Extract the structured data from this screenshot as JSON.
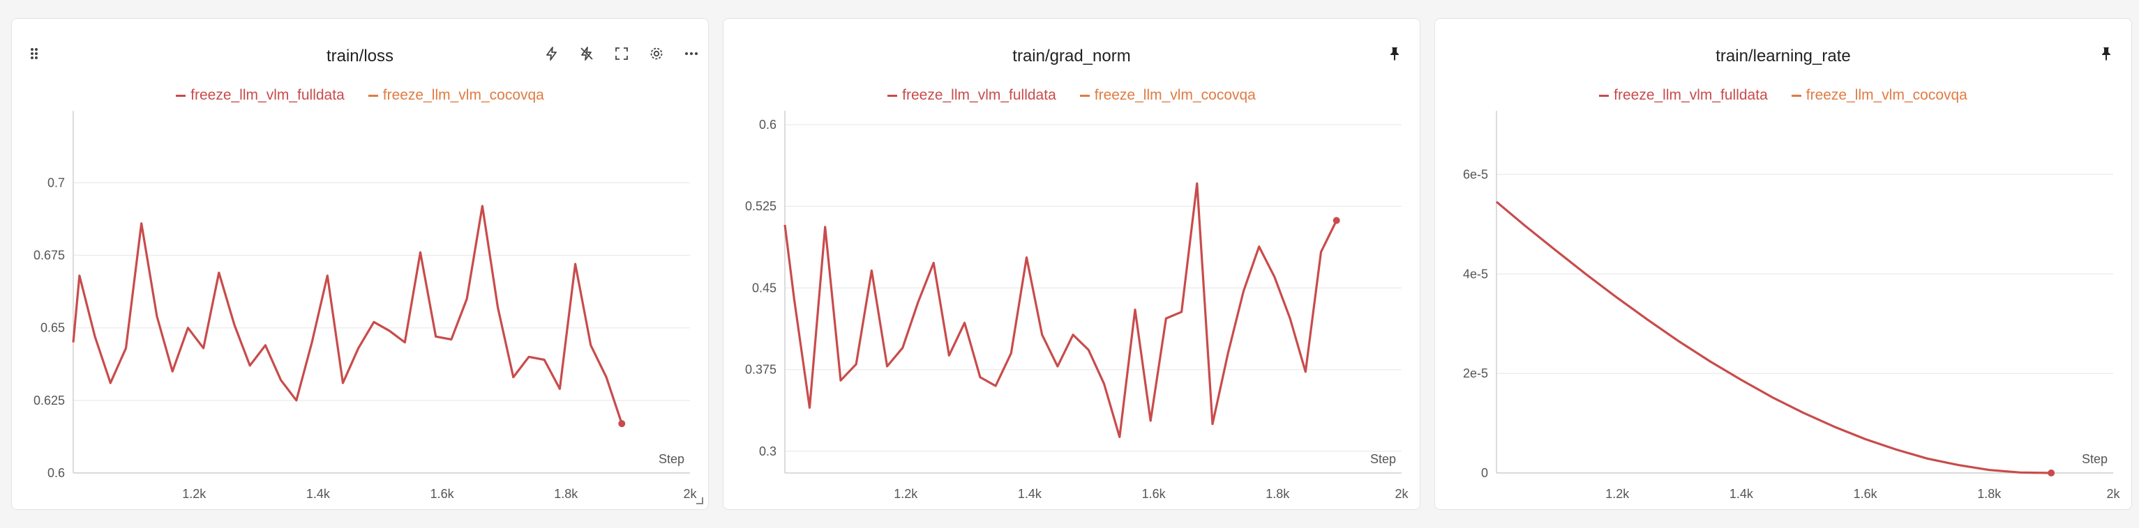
{
  "page_icons": [
    "drag-handle-icon",
    "lightning-icon",
    "lightning-off-icon",
    "fullscreen-icon",
    "gear-icon",
    "more-icon",
    "pin-icon",
    "resize-icon"
  ],
  "colors": {
    "series_fulldata": "#c94b4b",
    "series_cocovqa": "#e07b42",
    "grid": "#ededed",
    "axis": "#d0d0d0"
  },
  "chart_data": [
    {
      "type": "line",
      "title": "train/loss",
      "xlabel": "Step",
      "ylabel": "",
      "xlim": [
        1005,
        2000
      ],
      "ylim": [
        0.6,
        0.72
      ],
      "xticks": [
        1200,
        1400,
        1600,
        1800,
        2000
      ],
      "xtick_labels": [
        "1.2k",
        "1.4k",
        "1.6k",
        "1.8k",
        "2k"
      ],
      "yticks": [
        0.6,
        0.625,
        0.65,
        0.675,
        0.7
      ],
      "ytick_labels": [
        "0.6",
        "0.625",
        "0.65",
        "0.675",
        "0.7"
      ],
      "grid": true,
      "legend": "top-center",
      "legend_entries": [
        "freeze_llm_vlm_fulldata",
        "freeze_llm_vlm_cocovqa"
      ],
      "series": [
        {
          "name": "freeze_llm_vlm_fulldata",
          "color": "#c94b4b",
          "x": [
            1005,
            1015,
            1040,
            1065,
            1090,
            1115,
            1140,
            1165,
            1190,
            1215,
            1240,
            1265,
            1290,
            1315,
            1340,
            1365,
            1390,
            1415,
            1440,
            1465,
            1490,
            1515,
            1540,
            1565,
            1590,
            1615,
            1640,
            1665,
            1690,
            1715,
            1740,
            1765,
            1790,
            1815,
            1840,
            1865,
            1890
          ],
          "y": [
            0.645,
            0.668,
            0.647,
            0.631,
            0.643,
            0.686,
            0.654,
            0.635,
            0.65,
            0.643,
            0.669,
            0.651,
            0.637,
            0.644,
            0.632,
            0.625,
            0.645,
            0.668,
            0.631,
            0.643,
            0.652,
            0.649,
            0.645,
            0.676,
            0.647,
            0.646,
            0.66,
            0.692,
            0.657,
            0.633,
            0.64,
            0.639,
            0.629,
            0.672,
            0.644,
            0.633,
            0.617
          ]
        },
        {
          "name": "freeze_llm_vlm_cocovqa",
          "color": "#e07b42",
          "x": [],
          "y": []
        }
      ]
    },
    {
      "type": "line",
      "title": "train/grad_norm",
      "xlabel": "Step",
      "ylabel": "",
      "xlim": [
        1005,
        2000
      ],
      "ylim": [
        0.28,
        0.6
      ],
      "xticks": [
        1200,
        1400,
        1600,
        1800,
        2000
      ],
      "xtick_labels": [
        "1.2k",
        "1.4k",
        "1.6k",
        "1.8k",
        "2k"
      ],
      "yticks": [
        0.3,
        0.375,
        0.45,
        0.525,
        0.6
      ],
      "ytick_labels": [
        "0.3",
        "0.375",
        "0.45",
        "0.525",
        "0.6"
      ],
      "grid": true,
      "legend": "top-center",
      "legend_entries": [
        "freeze_llm_vlm_fulldata",
        "freeze_llm_vlm_cocovqa"
      ],
      "series": [
        {
          "name": "freeze_llm_vlm_fulldata",
          "color": "#c94b4b",
          "x": [
            1005,
            1020,
            1045,
            1070,
            1095,
            1120,
            1145,
            1170,
            1195,
            1220,
            1245,
            1270,
            1295,
            1320,
            1345,
            1370,
            1395,
            1420,
            1445,
            1470,
            1495,
            1520,
            1545,
            1570,
            1595,
            1620,
            1645,
            1670,
            1695,
            1720,
            1745,
            1770,
            1795,
            1820,
            1845,
            1870,
            1895
          ],
          "y": [
            0.508,
            0.44,
            0.34,
            0.506,
            0.365,
            0.38,
            0.466,
            0.378,
            0.395,
            0.437,
            0.473,
            0.388,
            0.418,
            0.368,
            0.36,
            0.39,
            0.478,
            0.407,
            0.378,
            0.407,
            0.393,
            0.362,
            0.313,
            0.43,
            0.328,
            0.422,
            0.428,
            0.546,
            0.325,
            0.39,
            0.447,
            0.488,
            0.46,
            0.422,
            0.373,
            0.483,
            0.512
          ]
        },
        {
          "name": "freeze_llm_vlm_cocovqa",
          "color": "#e07b42",
          "x": [],
          "y": []
        }
      ]
    },
    {
      "type": "line",
      "title": "train/learning_rate",
      "xlabel": "Step",
      "ylabel": "",
      "xlim": [
        1005,
        2000
      ],
      "ylim": [
        0,
        7e-05
      ],
      "xticks": [
        1200,
        1400,
        1600,
        1800,
        2000
      ],
      "xtick_labels": [
        "1.2k",
        "1.4k",
        "1.6k",
        "1.8k",
        "2k"
      ],
      "yticks": [
        0,
        2e-05,
        4e-05,
        6e-05
      ],
      "ytick_labels": [
        "0",
        "2e-5",
        "4e-5",
        "6e-5"
      ],
      "grid": true,
      "legend": "top-center",
      "legend_entries": [
        "freeze_llm_vlm_fulldata",
        "freeze_llm_vlm_cocovqa"
      ],
      "series": [
        {
          "name": "freeze_llm_vlm_fulldata",
          "color": "#c94b4b",
          "x": [
            1005,
            1050,
            1100,
            1150,
            1200,
            1250,
            1300,
            1350,
            1400,
            1450,
            1500,
            1550,
            1600,
            1650,
            1700,
            1750,
            1800,
            1850,
            1900
          ],
          "y": [
            5.45e-05,
            4.98e-05,
            4.48e-05,
            3.99e-05,
            3.52e-05,
            3.07e-05,
            2.64e-05,
            2.24e-05,
            1.87e-05,
            1.52e-05,
            1.21e-05,
            9.3e-06,
            6.8e-06,
            4.7e-06,
            2.9e-06,
            1.6e-06,
            6e-07,
            1e-07,
            0.0
          ]
        },
        {
          "name": "freeze_llm_vlm_cocovqa",
          "color": "#e07b42",
          "x": [],
          "y": []
        }
      ]
    }
  ]
}
